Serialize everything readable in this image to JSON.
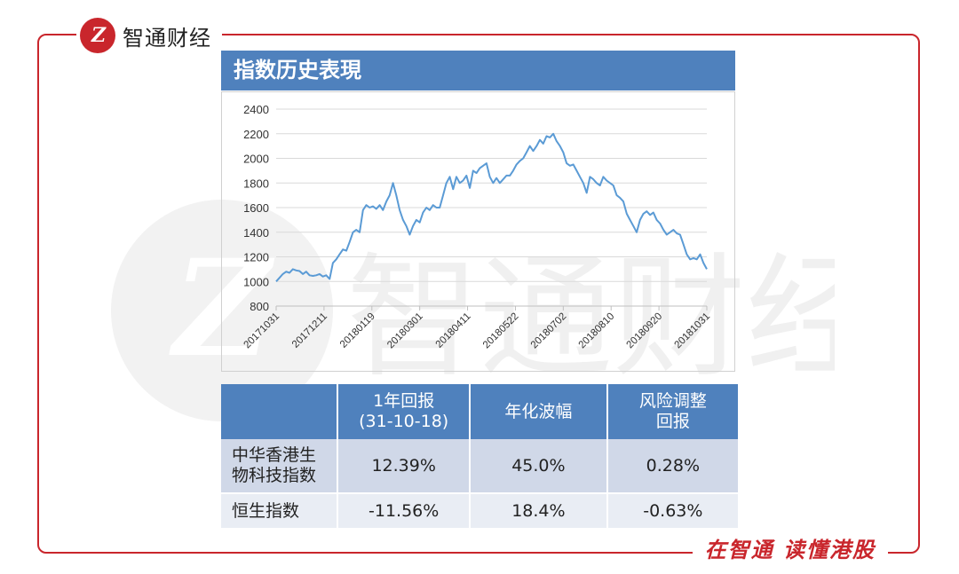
{
  "brand": {
    "logo_mark": "Z",
    "name": "智通财经",
    "slogan": "在智通  读懂港股",
    "accent": "#c9262c"
  },
  "watermark_text": "智通财经",
  "chart_header": "指数历史表現",
  "chart_data": {
    "type": "line",
    "title": "",
    "xlabel": "",
    "ylabel": "",
    "ylim": [
      800,
      2400
    ],
    "yticks": [
      "800",
      "1000",
      "1200",
      "1400",
      "1600",
      "1800",
      "2000",
      "2200",
      "2400"
    ],
    "x_tick_labels": [
      "20171031",
      "20171211",
      "20180119",
      "20180301",
      "20180411",
      "20180522",
      "20180702",
      "20180810",
      "20180920",
      "20181031"
    ],
    "grid": true,
    "line_color": "#5b9bd5",
    "series": [
      {
        "values": [
          1000,
          1030,
          1060,
          1080,
          1070,
          1100,
          1090,
          1085,
          1060,
          1080,
          1050,
          1045,
          1050,
          1060,
          1040,
          1050,
          1020,
          1150,
          1180,
          1220,
          1260,
          1250,
          1320,
          1400,
          1420,
          1400,
          1580,
          1620,
          1600,
          1610,
          1590,
          1620,
          1580,
          1650,
          1700,
          1800,
          1700,
          1580,
          1500,
          1450,
          1380,
          1450,
          1500,
          1480,
          1560,
          1600,
          1580,
          1620,
          1600,
          1600,
          1700,
          1800,
          1850,
          1750,
          1850,
          1800,
          1820,
          1860,
          1760,
          1900,
          1880,
          1920,
          1940,
          1960,
          1850,
          1800,
          1840,
          1800,
          1830,
          1860,
          1860,
          1900,
          1950,
          1980,
          2000,
          2050,
          2100,
          2060,
          2100,
          2150,
          2120,
          2180,
          2170,
          2200,
          2140,
          2100,
          2050,
          1960,
          1940,
          1950,
          1900,
          1850,
          1800,
          1720,
          1850,
          1830,
          1800,
          1780,
          1850,
          1820,
          1800,
          1780,
          1700,
          1680,
          1650,
          1550,
          1500,
          1450,
          1400,
          1500,
          1550,
          1570,
          1540,
          1560,
          1500,
          1470,
          1420,
          1380,
          1400,
          1420,
          1390,
          1380,
          1300,
          1220,
          1180,
          1190,
          1180,
          1220,
          1150,
          1100
        ]
      }
    ]
  },
  "table": {
    "headers": [
      "",
      "1年回报\n(31-10-18)",
      "年化波幅",
      "风险调整\n回报"
    ],
    "rows": [
      [
        "中华香港生\n物科技指数",
        "12.39%",
        "45.0%",
        "0.28%"
      ],
      [
        "恒生指数",
        "-11.56%",
        "18.4%",
        "-0.63%"
      ]
    ]
  }
}
